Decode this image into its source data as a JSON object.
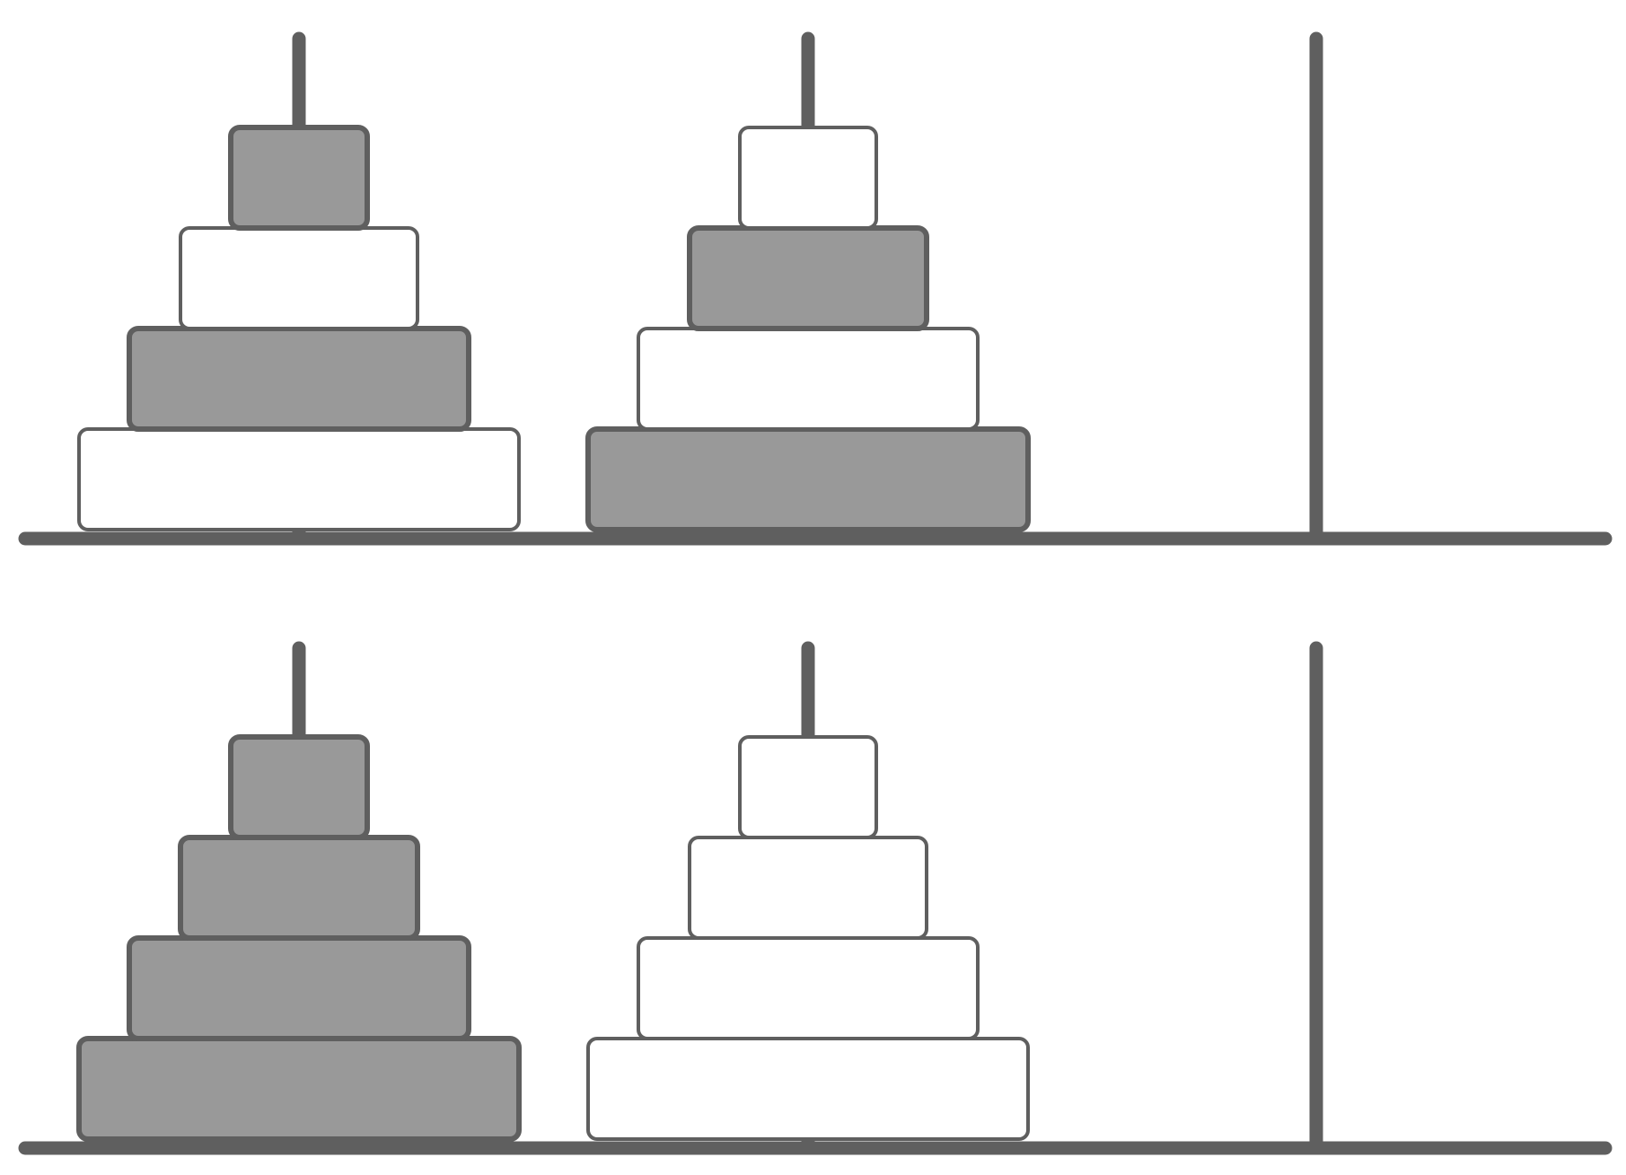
{
  "colors": {
    "stroke": "#5f5f5f",
    "filled": "#999999",
    "empty": "#ffffff",
    "background": "#ffffff"
  },
  "peg_count": 3,
  "panels": [
    {
      "name": "top-panel",
      "pegs": [
        {
          "name": "peg-left",
          "disks_bottom_to_top": [
            {
              "size": 4,
              "shaded": false
            },
            {
              "size": 3,
              "shaded": true
            },
            {
              "size": 2,
              "shaded": false
            },
            {
              "size": 1,
              "shaded": true
            }
          ]
        },
        {
          "name": "peg-middle",
          "disks_bottom_to_top": [
            {
              "size": 4,
              "shaded": true
            },
            {
              "size": 3,
              "shaded": false
            },
            {
              "size": 2,
              "shaded": true
            },
            {
              "size": 1,
              "shaded": false
            }
          ]
        },
        {
          "name": "peg-right",
          "disks_bottom_to_top": []
        }
      ]
    },
    {
      "name": "bottom-panel",
      "pegs": [
        {
          "name": "peg-left",
          "disks_bottom_to_top": [
            {
              "size": 4,
              "shaded": true
            },
            {
              "size": 3,
              "shaded": true
            },
            {
              "size": 2,
              "shaded": true
            },
            {
              "size": 1,
              "shaded": true
            }
          ]
        },
        {
          "name": "peg-middle",
          "disks_bottom_to_top": [
            {
              "size": 4,
              "shaded": false
            },
            {
              "size": 3,
              "shaded": false
            },
            {
              "size": 2,
              "shaded": false
            },
            {
              "size": 1,
              "shaded": false
            }
          ]
        },
        {
          "name": "peg-right",
          "disks_bottom_to_top": []
        }
      ]
    }
  ]
}
